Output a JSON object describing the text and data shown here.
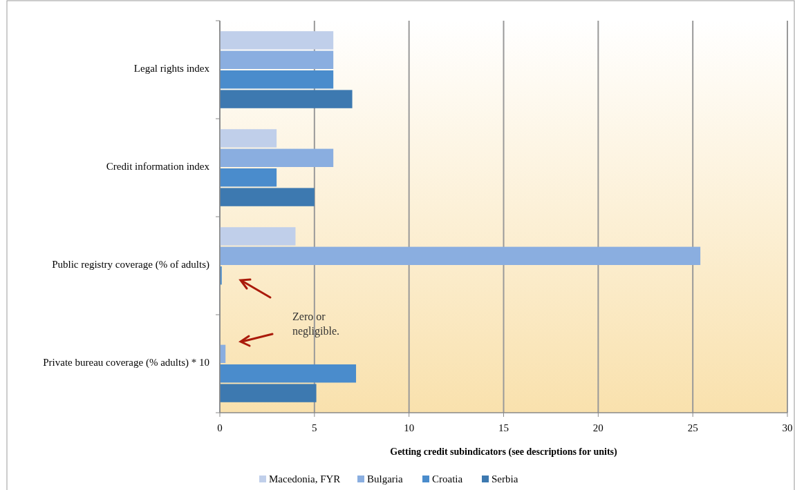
{
  "chart_data": {
    "type": "bar",
    "orientation": "horizontal",
    "xlabel": "Getting credit subindicators (see descriptions for units)",
    "categories": [
      "Legal rights index",
      "Credit information index",
      "Public registry coverage (% of adults)",
      "Private bureau coverage (% adults) * 10"
    ],
    "series": [
      {
        "name": "Macedonia, FYR",
        "color": "#c0cfea",
        "values": [
          6,
          3,
          4,
          0
        ]
      },
      {
        "name": "Bulgaria",
        "color": "#8aaee0",
        "values": [
          6,
          6,
          25.4,
          0.3
        ]
      },
      {
        "name": "Croatia",
        "color": "#4a8ccc",
        "values": [
          6,
          3,
          0.1,
          7.2
        ]
      },
      {
        "name": "Serbia",
        "color": "#3d79b0",
        "values": [
          7,
          5,
          0,
          5.1
        ]
      }
    ],
    "xlim": [
      0,
      30
    ],
    "xticks": [
      0,
      5,
      10,
      15,
      20,
      25,
      30
    ],
    "grid": "x",
    "legend": "bottom",
    "annotations": [
      "Zero or negligible."
    ]
  }
}
